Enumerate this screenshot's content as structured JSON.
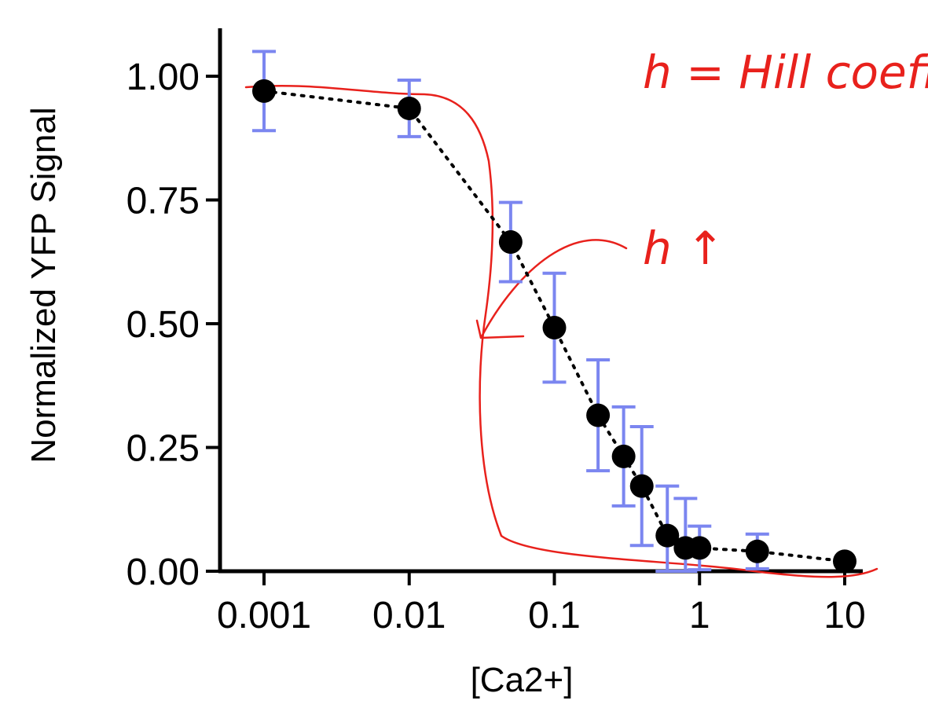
{
  "chart_data": {
    "type": "scatter",
    "title": "",
    "xlabel": "[Ca2+]",
    "ylabel": "Normalized YFP Signal",
    "x_scale": "log",
    "xlim": [
      0.001,
      10
    ],
    "ylim": [
      0,
      1
    ],
    "x_ticks": [
      {
        "value": 0.001,
        "label": "0.001"
      },
      {
        "value": 0.01,
        "label": "0.01"
      },
      {
        "value": 0.1,
        "label": "0.1"
      },
      {
        "value": 1,
        "label": "1"
      },
      {
        "value": 10,
        "label": "10"
      }
    ],
    "y_ticks": [
      {
        "value": 0,
        "label": "0.00"
      },
      {
        "value": 0.25,
        "label": "0.25"
      },
      {
        "value": 0.5,
        "label": "0.50"
      },
      {
        "value": 0.75,
        "label": "0.75"
      },
      {
        "value": 1,
        "label": "1.00"
      }
    ],
    "grid": false,
    "series": [
      {
        "points": [
          {
            "x": 0.001,
            "y": 0.97,
            "err": 0.08
          },
          {
            "x": 0.01,
            "y": 0.935,
            "err": 0.057
          },
          {
            "x": 0.05,
            "y": 0.665,
            "err": 0.08
          },
          {
            "x": 0.1,
            "y": 0.492,
            "err": 0.11
          },
          {
            "x": 0.2,
            "y": 0.315,
            "err": 0.112
          },
          {
            "x": 0.3,
            "y": 0.232,
            "err": 0.1
          },
          {
            "x": 0.4,
            "y": 0.172,
            "err": 0.12
          },
          {
            "x": 0.6,
            "y": 0.072,
            "err": 0.1
          },
          {
            "x": 0.8,
            "y": 0.047,
            "err": 0.1
          },
          {
            "x": 1,
            "y": 0.047,
            "err": 0.044
          },
          {
            "x": 2.5,
            "y": 0.04,
            "err": 0.035
          },
          {
            "x": 10,
            "y": 0.02,
            "err": 0.0
          }
        ]
      }
    ],
    "annotations": [
      {
        "text": "h = Hill coeff."
      },
      {
        "text": "h ↑"
      }
    ],
    "colors": {
      "points": "#000000",
      "error_bars": "#7b86f0",
      "connector": "#000000",
      "annotation": "#e8211c",
      "axis": "#000000"
    }
  }
}
